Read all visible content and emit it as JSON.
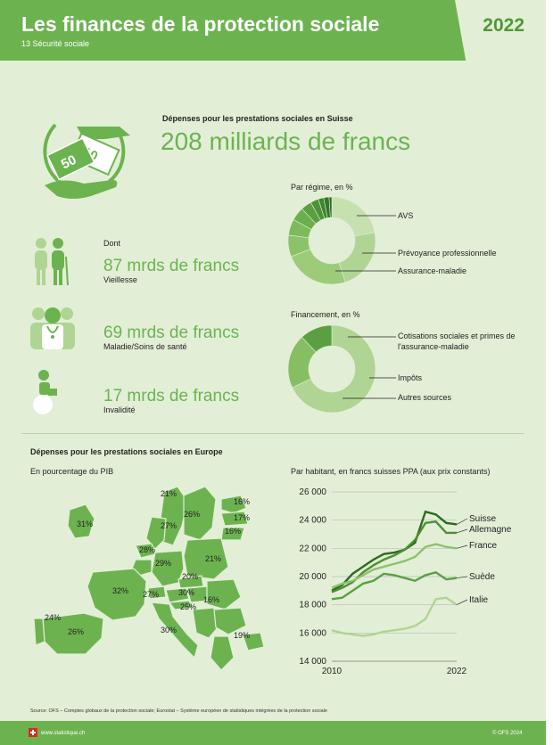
{
  "header": {
    "title": "Les finances de la protection sociale",
    "subtitle": "13 Sécurité sociale",
    "year": "2022"
  },
  "switzerland": {
    "heading": "Dépenses pour les prestations sociales en Suisse",
    "total": "208 milliards de francs",
    "dont": "Dont",
    "items": [
      {
        "amount": "87 mrds de francs",
        "label": "Vieillesse",
        "icon": "elderly-couple-icon"
      },
      {
        "amount": "69 mrds de francs",
        "label": "Maladie/Soins de santé",
        "icon": "doctor-icon"
      },
      {
        "amount": "17 mrds de francs",
        "label": "Invalidité",
        "icon": "wheelchair-icon"
      }
    ],
    "money_icon": "hands-money-icon"
  },
  "regime": {
    "title": "Par régime, en %",
    "legend": [
      "AVS",
      "Prévoyance professionnelle",
      "Assurance-maladie"
    ],
    "slices": [
      {
        "value": 22,
        "color": "#c6e0b0"
      },
      {
        "value": 23,
        "color": "#b0d494"
      },
      {
        "value": 24,
        "color": "#9ccb7a"
      },
      {
        "value": 8,
        "color": "#8cc36a"
      },
      {
        "value": 6,
        "color": "#7cba5c"
      },
      {
        "value": 5,
        "color": "#6aae4e"
      },
      {
        "value": 4,
        "color": "#5aa043"
      },
      {
        "value": 3,
        "color": "#4c9238"
      },
      {
        "value": 2,
        "color": "#3f8430"
      },
      {
        "value": 2,
        "color": "#347628"
      },
      {
        "value": 1,
        "color": "#2a6820"
      }
    ]
  },
  "financement": {
    "title": "Financement, en %",
    "legend": [
      "Cotisations sociales et primes de l'assurance-maladie",
      "Impôts",
      "Autres sources"
    ],
    "slices": [
      {
        "value": 68,
        "color": "#b0d494"
      },
      {
        "value": 20,
        "color": "#86bf63"
      },
      {
        "value": 12,
        "color": "#5aa043"
      }
    ]
  },
  "europe": {
    "heading": "Dépenses pour les prestations sociales en Europe",
    "map_title": "En pourcentage du PIB",
    "map_labels": [
      "21%",
      "26%",
      "16%",
      "17%",
      "16%",
      "31%",
      "27%",
      "28%",
      "29%",
      "21%",
      "32%",
      "20%",
      "27%",
      "30%",
      "25%",
      "16%",
      "24%",
      "26%",
      "30%",
      "19%"
    ],
    "chart": {
      "title": "Par habitant, en francs suisses PPA (aux prix constants)",
      "y_ticks": [
        "26 000",
        "24 000",
        "22 000",
        "20 000",
        "18 000",
        "16 000",
        "14 000"
      ],
      "x_ticks": [
        "2010",
        "2022"
      ]
    }
  },
  "chart_data": {
    "type": "line",
    "title": "Par habitant, en francs suisses PPA (aux prix constants)",
    "x": [
      2010,
      2011,
      2012,
      2013,
      2014,
      2015,
      2016,
      2017,
      2018,
      2019,
      2020,
      2021,
      2022
    ],
    "ylim": [
      14000,
      26000
    ],
    "series": [
      {
        "name": "Suisse",
        "color": "#2d6a1e",
        "values": [
          19000,
          19400,
          20200,
          20700,
          21200,
          21600,
          21700,
          21900,
          22400,
          24600,
          24400,
          23800,
          23700
        ]
      },
      {
        "name": "Allemagne",
        "color": "#4e8f36",
        "values": [
          18900,
          19200,
          19600,
          20300,
          20800,
          21200,
          21500,
          21900,
          22600,
          23800,
          23900,
          23100,
          23100
        ]
      },
      {
        "name": "France",
        "color": "#8cc36a",
        "values": [
          19200,
          19500,
          19700,
          20100,
          20500,
          20700,
          20900,
          21100,
          21400,
          22100,
          22300,
          22100,
          22000
        ]
      },
      {
        "name": "Suède",
        "color": "#5aa043",
        "values": [
          18400,
          18500,
          19000,
          19500,
          19700,
          20200,
          20100,
          19900,
          19700,
          20100,
          20300,
          19800,
          19900
        ]
      },
      {
        "name": "Italie",
        "color": "#b0d494",
        "values": [
          16200,
          16000,
          15900,
          15800,
          15900,
          16100,
          16200,
          16300,
          16500,
          17000,
          18400,
          18500,
          18000
        ]
      }
    ]
  },
  "footer": {
    "source": "Source: OFS – Comptes globaux de la protection sociale; Eurostat – Système européen de statistiques intégrées de la protection sociale",
    "site": "www.statistique.ch",
    "copyright": "© OFS 2024"
  }
}
